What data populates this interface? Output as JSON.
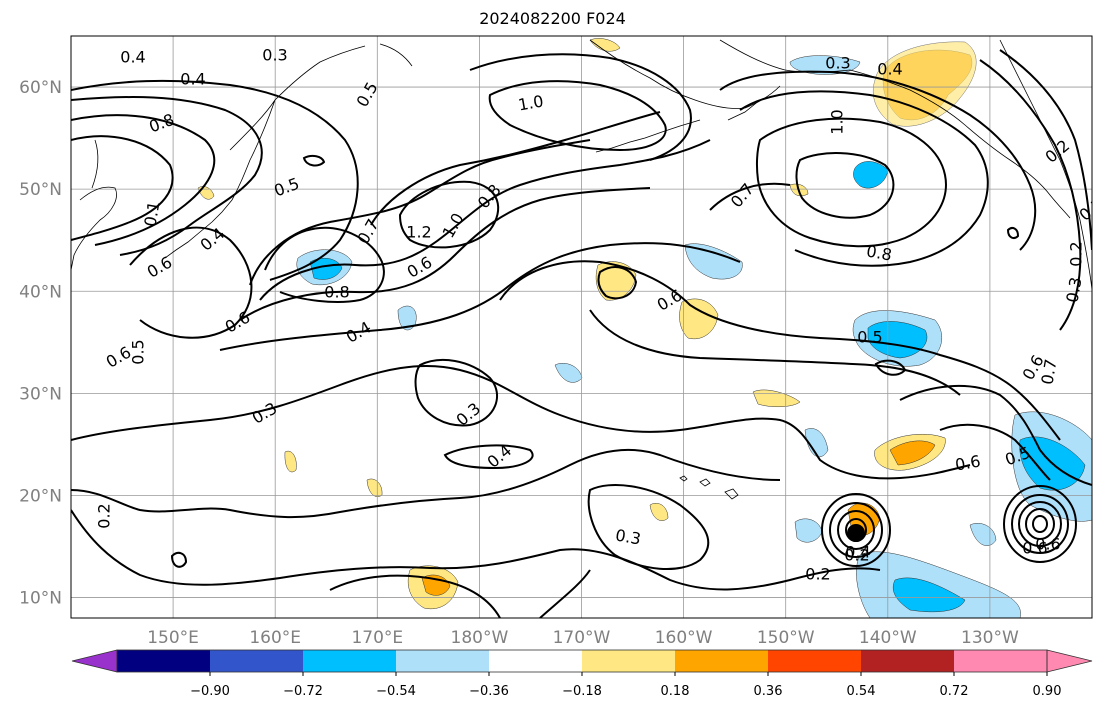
{
  "title": "2024082200 F024",
  "map": {
    "lat_labels": [
      "60°N",
      "50°N",
      "40°N",
      "30°N",
      "20°N",
      "10°N"
    ],
    "lat_values": [
      60,
      50,
      40,
      30,
      20,
      10
    ],
    "lon_labels": [
      "150°E",
      "160°E",
      "170°E",
      "180°W",
      "170°W",
      "160°W",
      "150°W",
      "140°W",
      "130°W"
    ],
    "lon_values": [
      150,
      160,
      170,
      180,
      190,
      200,
      210,
      220,
      230
    ],
    "lat_range": [
      8,
      65
    ],
    "lon_range": [
      140,
      240
    ],
    "grid": true
  },
  "contour_labels": [
    "0.4",
    "0.3",
    "0.4",
    "0.5",
    "1.0",
    "0.3",
    "0.4",
    "0.8",
    "0.5",
    "1.0",
    "0.2",
    "0.1",
    "0.4",
    "0.7",
    "1.2",
    "1.0",
    "0.8",
    "0.7",
    "0.6",
    "0.6",
    "0.8",
    "0.8",
    "0.2",
    "0.6",
    "0.6",
    "0.4",
    "0.6",
    "0.5",
    "0.5",
    "0.6",
    "0.3",
    "0.3",
    "0.6",
    "0.7",
    "0.4",
    "0.5",
    "0.6",
    "0.3",
    "0.2",
    "0.4",
    "0.2",
    "0.3",
    "0.2",
    "0.6",
    "0.2"
  ],
  "colorbar": {
    "ticks": [
      "−0.90",
      "−0.72",
      "−0.54",
      "−0.36",
      "−0.18",
      "0.18",
      "0.36",
      "0.54",
      "0.72",
      "0.90"
    ],
    "colors": [
      "#9932cc",
      "#000080",
      "#3355cc",
      "#00bfff",
      "#aee0fa",
      "#ffffff",
      "#ffe884",
      "#ffa500",
      "#ff4500",
      "#b22222",
      "#ff89b1",
      "#ff89b1"
    ]
  }
}
